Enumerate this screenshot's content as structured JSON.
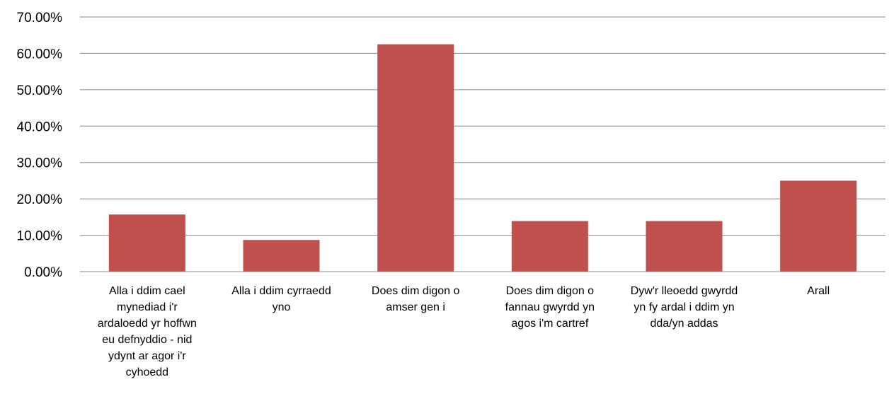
{
  "chart_data": {
    "type": "bar",
    "categories": [
      "Alla i ddim cael mynediad i'r ardaloedd yr hoffwn eu defnyddio - nid ydynt ar agor i'r cyhoedd",
      "Alla i ddim cyrraedd yno",
      "Does dim digon o amser gen i",
      "Does dim digon o fannau gwyrdd yn agos i'm cartref",
      "Dyw'r lleoedd gwyrdd yn fy ardal i ddim yn dda/yn addas",
      "Arall"
    ],
    "category_lines": [
      [
        "Alla i ddim cael",
        "mynediad i'r",
        "ardaloedd yr hoffwn",
        "eu defnyddio - nid",
        "ydynt ar agor i'r",
        "cyhoedd"
      ],
      [
        "Alla i ddim cyrraedd",
        "yno"
      ],
      [
        "Does dim digon o",
        "amser gen i"
      ],
      [
        "Does dim digon o",
        "fannau gwyrdd yn",
        "agos i'm cartref"
      ],
      [
        "Dyw'r lleoedd gwyrdd",
        "yn fy ardal i ddim yn",
        "dda/yn addas"
      ],
      [
        "Arall"
      ]
    ],
    "values": [
      15.7,
      8.7,
      62.5,
      13.9,
      13.9,
      25.0
    ],
    "ylim": [
      0,
      70
    ],
    "yticks": [
      "0.00%",
      "10.00%",
      "20.00%",
      "30.00%",
      "40.00%",
      "50.00%",
      "60.00%",
      "70.00%"
    ],
    "title": "",
    "xlabel": "",
    "ylabel": "",
    "grid": true,
    "legend": "none",
    "bar_color": "#c0504d",
    "grid_color": "#8c8c8c"
  }
}
